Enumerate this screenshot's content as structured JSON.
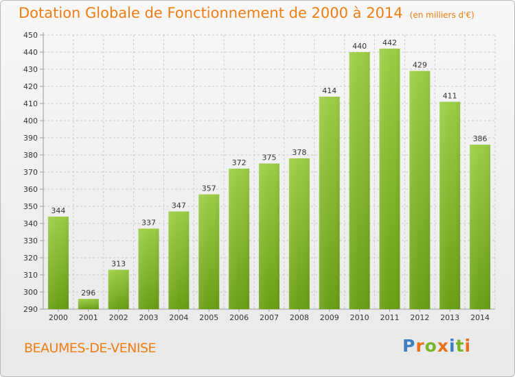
{
  "title": "Dotation Globale de Fonctionnement de 2000 à 2014",
  "subtitle": "(en milliers d'€)",
  "commune": "BEAUMES-DE-VENISE",
  "logo": {
    "text": "Proxiti",
    "letters": [
      {
        "char": "P",
        "color": "#3d7fc2"
      },
      {
        "char": "r",
        "color": "#e8701b"
      },
      {
        "char": "o",
        "color": "#79b528"
      },
      {
        "char": "x",
        "color": "#e8701b"
      },
      {
        "char": "i",
        "color": "#3d7fc2"
      },
      {
        "char": "t",
        "color": "#79b528"
      },
      {
        "char": "i",
        "color": "#e8701b"
      }
    ]
  },
  "colors": {
    "accent": "#ee7d12",
    "bar_top": "#9ccd45",
    "bar_bottom": "#6a9e14",
    "grid": "#c8c8c8"
  },
  "chart_data": {
    "type": "bar",
    "title": "Dotation Globale de Fonctionnement de 2000 à 2014",
    "subtitle": "(en milliers d'€)",
    "xlabel": "",
    "ylabel": "",
    "categories": [
      "2000",
      "2001",
      "2002",
      "2003",
      "2004",
      "2005",
      "2006",
      "2007",
      "2008",
      "2009",
      "2010",
      "2011",
      "2012",
      "2013",
      "2014"
    ],
    "values": [
      344,
      296,
      313,
      337,
      347,
      357,
      372,
      375,
      378,
      414,
      440,
      442,
      429,
      411,
      386
    ],
    "ylim": [
      290,
      450
    ],
    "yticks": [
      290,
      300,
      310,
      320,
      330,
      340,
      350,
      360,
      370,
      380,
      390,
      400,
      410,
      420,
      430,
      440,
      450
    ],
    "grid": true,
    "data_labels": true
  }
}
